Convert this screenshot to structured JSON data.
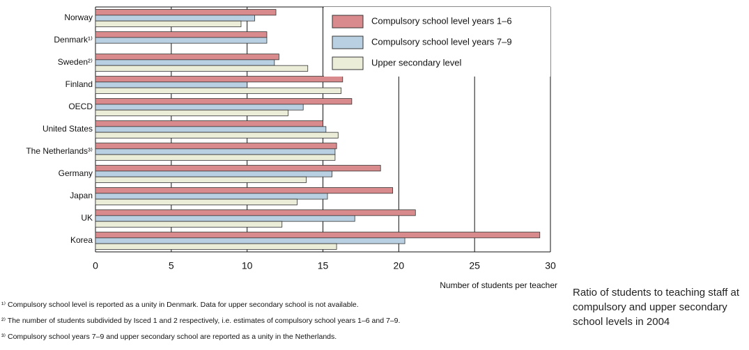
{
  "chart_data": {
    "type": "bar",
    "orientation": "horizontal",
    "categories": [
      "Norway",
      "Denmark¹⁾",
      "Sweden²⁾",
      "Finland",
      "OECD",
      "United States",
      "The Netherlands³⁾",
      "Germany",
      "Japan",
      "UK",
      "Korea"
    ],
    "series": [
      {
        "name": "Compulsory school level years 1–6",
        "color": "#d98a8c",
        "values": [
          11.9,
          11.3,
          12.1,
          16.3,
          16.9,
          15.0,
          15.9,
          18.8,
          19.6,
          21.1,
          29.3
        ]
      },
      {
        "name": "Compulsory school level years 7–9",
        "color": "#b9d0e2",
        "values": [
          10.5,
          11.3,
          11.8,
          10.0,
          13.7,
          15.2,
          15.8,
          15.6,
          15.3,
          17.1,
          20.4
        ]
      },
      {
        "name": "Upper secondary level",
        "color": "#ecedd8",
        "values": [
          9.6,
          null,
          14.0,
          16.2,
          12.7,
          16.0,
          15.8,
          13.9,
          13.3,
          12.3,
          15.9
        ]
      }
    ],
    "xlim": [
      0,
      30
    ],
    "xticks": [
      0,
      5,
      10,
      15,
      20,
      25,
      30
    ],
    "grid": true,
    "legend": "top-right",
    "xlabel": "Number of students per teacher",
    "footnotes": [
      "¹⁾ Compulsory school level is reported as a unity in Denmark. Data for upper secondary school is not available.",
      "²⁾ The number of students subdivided by Isced 1 and 2 respectively, i.e. estimates of compulsory school years 1–6 and 7–9.",
      "³⁾ Compulsory school years 7–9 and upper secondary school are reported as a unity in the Netherlands."
    ],
    "caption": "Ratio of students to teaching staff at compulsory and upper secondary school levels in 2004"
  }
}
